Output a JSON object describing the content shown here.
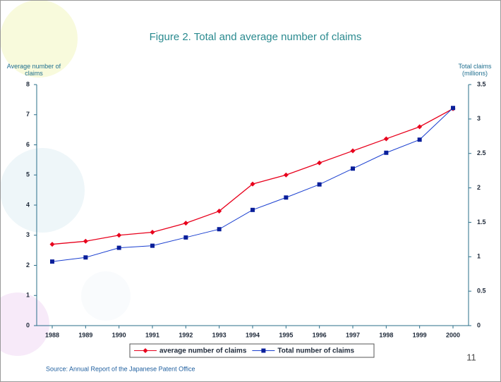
{
  "chart_data": {
    "type": "line",
    "title": "Figure 2. Total and average number of claims",
    "ylabel": "Average number of claims",
    "y2label": "Total claims (millions)",
    "categories": [
      "1988",
      "1989",
      "1990",
      "1991",
      "1992",
      "1993",
      "1994",
      "1995",
      "1996",
      "1997",
      "1998",
      "1999",
      "2000"
    ],
    "series": [
      {
        "name": "average number of claims",
        "color": "#e8001c",
        "marker": "diamond",
        "values": [
          2.7,
          2.8,
          3.0,
          3.1,
          3.4,
          3.8,
          4.7,
          5.0,
          5.4,
          5.8,
          6.2,
          6.6,
          7.2
        ]
      },
      {
        "name": "Total number of claims",
        "color": "#1a3fd0",
        "marker": "square",
        "axis": "y2",
        "values": [
          0.93,
          0.99,
          1.13,
          1.16,
          1.28,
          1.4,
          1.68,
          1.86,
          2.05,
          2.28,
          2.51,
          2.7,
          3.16
        ]
      }
    ],
    "ylim": [
      0,
      8
    ],
    "yticks": [
      0,
      1,
      2,
      3,
      4,
      5,
      6,
      7,
      8
    ],
    "y2lim": [
      0,
      3.5
    ],
    "y2ticks": [
      0,
      0.5,
      1,
      1.5,
      2,
      2.5,
      3,
      3.5
    ],
    "source": "Source: Annual Report of the Japanese Patent Office",
    "page_number": "11"
  }
}
